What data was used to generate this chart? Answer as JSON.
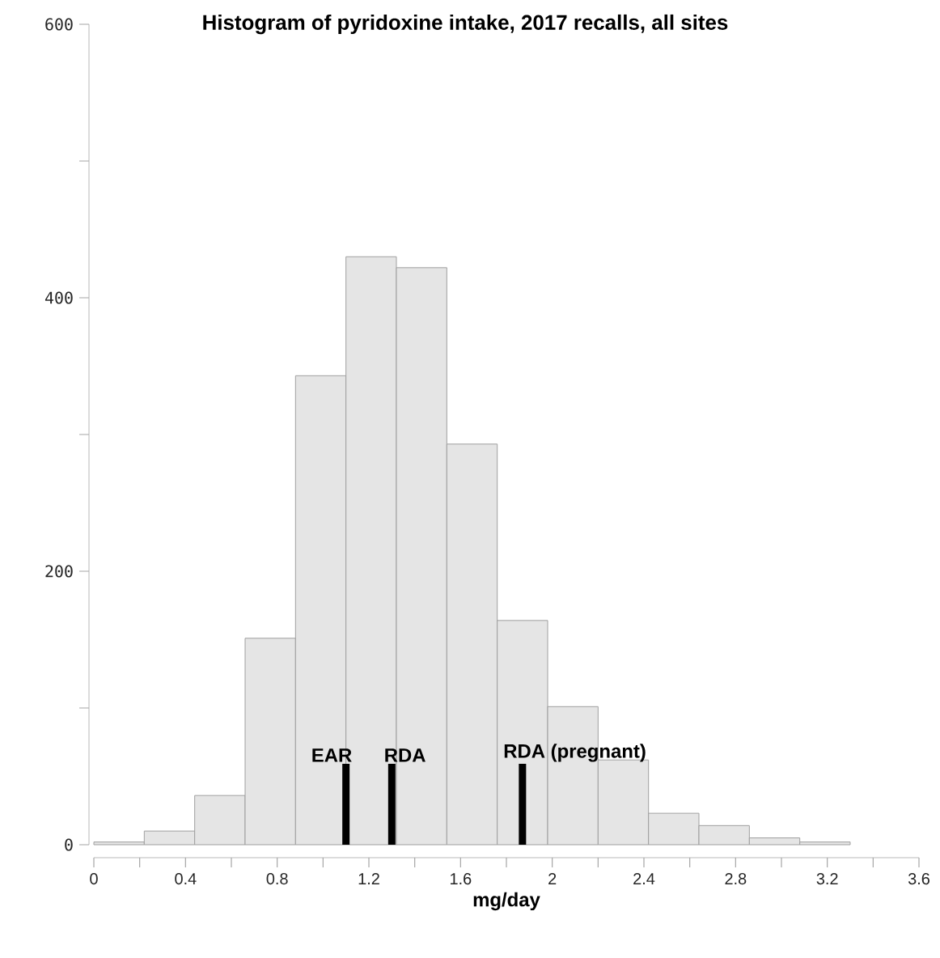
{
  "chart_data": {
    "type": "histogram",
    "title": "Histogram of pyridoxine intake, 2017 recalls, all sites",
    "xlabel": "mg/day",
    "bins": [
      0,
      0.22,
      0.44,
      0.66,
      0.88,
      1.1,
      1.32,
      1.54,
      1.76,
      1.98,
      2.2,
      2.42,
      2.64,
      2.86,
      3.08,
      3.3
    ],
    "values": [
      2,
      10,
      36,
      151,
      343,
      430,
      422,
      293,
      164,
      101,
      62,
      23,
      14,
      5,
      2
    ],
    "color": "#e5e5e5",
    "xlim": [
      0,
      3.6
    ],
    "ylim": [
      0,
      600
    ],
    "xticks": [
      0,
      {
        "value": 0.2,
        "label": null
      },
      0.4,
      {
        "value": 0.6,
        "label": null
      },
      0.8,
      {
        "value": 1.0,
        "label": null
      },
      1.2,
      {
        "value": 1.4,
        "label": null
      },
      1.6,
      {
        "value": 1.8,
        "label": null
      },
      2,
      {
        "value": 2.2,
        "label": null
      },
      2.4,
      {
        "value": 2.6,
        "label": null
      },
      2.8,
      {
        "value": 3.0,
        "label": null
      },
      3.2,
      {
        "value": 3.4,
        "label": null
      },
      3.6
    ],
    "yticks": [
      0,
      {
        "value": 100,
        "label": null
      },
      200,
      {
        "value": 300,
        "label": null
      },
      400,
      {
        "value": 500,
        "label": null
      },
      600
    ],
    "ref_lines": [
      {
        "axis": "x",
        "value": 1.1,
        "label": "EAR",
        "color": "#000000"
      },
      {
        "axis": "x",
        "value": 1.3,
        "label": "RDA",
        "color": "#000000"
      },
      {
        "axis": "x",
        "value": 1.87,
        "label": "RDA (pregnant)",
        "color": "#000000"
      }
    ],
    "line_style": "solid"
  }
}
